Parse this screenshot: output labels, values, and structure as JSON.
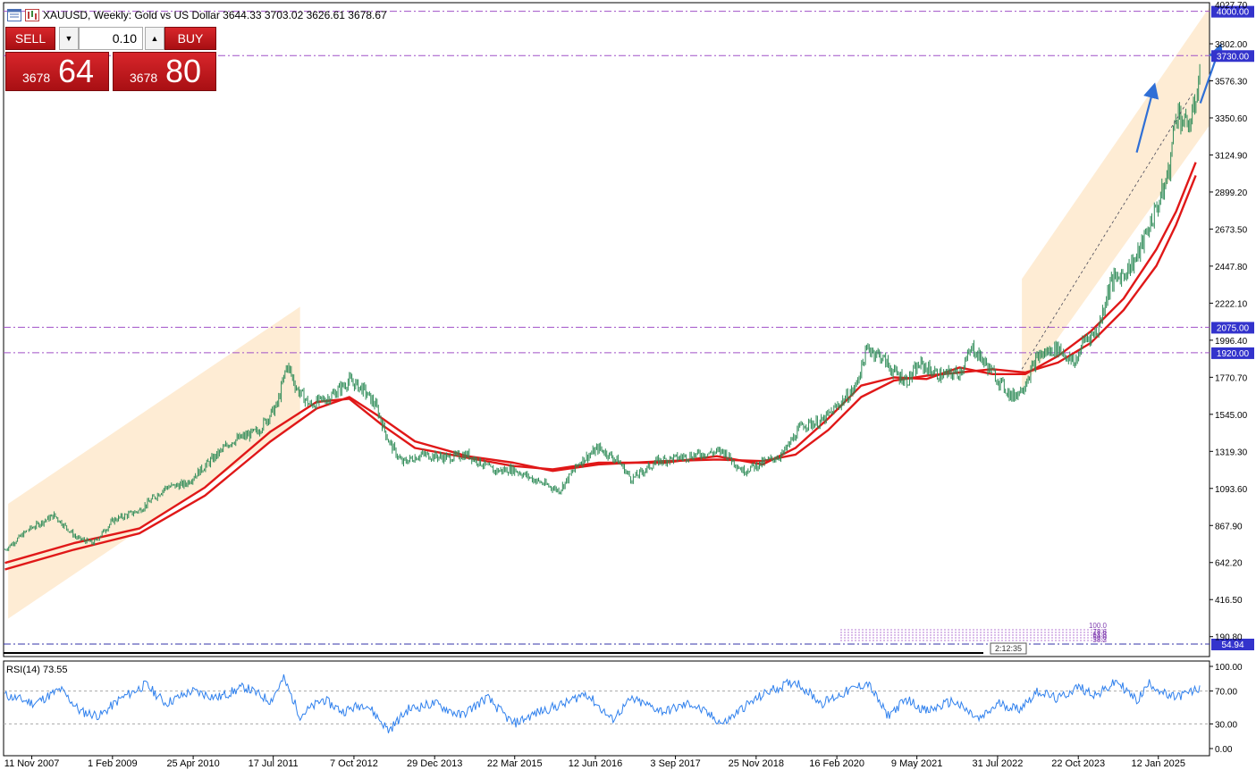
{
  "window": {
    "title": "XAUUSD, Weekly:  Gold vs US Dollar  3644.33 3703.02 3626.61 3678.67"
  },
  "trade_panel": {
    "sell_label": "SELL",
    "buy_label": "BUY",
    "volume": "0.10",
    "sell_price_small": "3678",
    "sell_price_big": "64",
    "buy_price_small": "3678",
    "buy_price_big": "80"
  },
  "colors": {
    "candle": "#2e8b57",
    "ma": "#e01818",
    "level_line": "#a050c8",
    "channel": "#fde5c6",
    "rsi": "#2f80ed",
    "label_bg": "#3333cc",
    "arrow": "#2f6fd6"
  },
  "icons": [
    "chart-window-icon",
    "symbol-icon",
    "volume-down-icon",
    "volume-up-icon"
  ],
  "chart_data": [
    {
      "type": "candlestick",
      "symbol": "XAUUSD",
      "timeframe": "Weekly",
      "log_scale": false,
      "ylim": [
        69.5,
        4052.4
      ],
      "y_ticks": [
        190.8,
        416.5,
        642.2,
        867.9,
        1093.6,
        1319.3,
        1545.0,
        1770.7,
        1996.4,
        2222.1,
        2447.8,
        2673.5,
        2899.2,
        3124.9,
        3350.6,
        3576.3,
        3802.0
      ],
      "x_ticks": [
        "11 Nov 2007",
        "1 Feb 2009",
        "25 Apr 2010",
        "17 Jul 2011",
        "7 Oct 2012",
        "29 Dec 2013",
        "22 Mar 2015",
        "12 Jun 2016",
        "3 Sep 2017",
        "25 Nov 2018",
        "16 Feb 2020",
        "9 May 2021",
        "31 Jul 2022",
        "22 Oct 2023",
        "12 Jan 2025"
      ],
      "x_years": [
        2007.86,
        2009.09,
        2010.32,
        2011.54,
        2012.77,
        2014.0,
        2015.22,
        2016.45,
        2017.67,
        2018.9,
        2020.13,
        2021.35,
        2022.58,
        2023.81,
        2025.03
      ],
      "x_range": [
        2007.43,
        2025.81
      ],
      "price_path": {
        "x": [
          2007.45,
          2007.8,
          2008.2,
          2008.55,
          2008.8,
          2009.1,
          2009.5,
          2009.9,
          2010.2,
          2010.5,
          2010.9,
          2011.3,
          2011.6,
          2011.75,
          2011.9,
          2012.1,
          2012.4,
          2012.7,
          2012.9,
          2013.1,
          2013.3,
          2013.5,
          2013.8,
          2014.2,
          2014.5,
          2014.9,
          2015.2,
          2015.5,
          2015.9,
          2016.2,
          2016.5,
          2016.8,
          2017.0,
          2017.4,
          2017.7,
          2018.0,
          2018.4,
          2018.7,
          2019.0,
          2019.3,
          2019.6,
          2019.9,
          2020.1,
          2020.4,
          2020.6,
          2020.8,
          2021.0,
          2021.2,
          2021.4,
          2021.7,
          2022.0,
          2022.2,
          2022.5,
          2022.8,
          2022.95,
          2023.2,
          2023.5,
          2023.75,
          2023.9,
          2024.1,
          2024.3,
          2024.5,
          2024.7,
          2024.9,
          2025.1,
          2025.2,
          2025.3,
          2025.45,
          2025.55,
          2025.68
        ],
        "y": [
          720,
          840,
          930,
          790,
          760,
          900,
          960,
          1100,
          1120,
          1230,
          1380,
          1440,
          1600,
          1850,
          1700,
          1600,
          1650,
          1750,
          1700,
          1600,
          1380,
          1250,
          1300,
          1280,
          1300,
          1200,
          1210,
          1150,
          1080,
          1250,
          1340,
          1260,
          1150,
          1260,
          1280,
          1300,
          1320,
          1200,
          1250,
          1300,
          1480,
          1500,
          1580,
          1700,
          1950,
          1900,
          1800,
          1750,
          1850,
          1780,
          1800,
          1950,
          1800,
          1650,
          1700,
          1900,
          1950,
          1850,
          2000,
          2050,
          2350,
          2400,
          2500,
          2700,
          2900,
          3050,
          3400,
          3300,
          3350,
          3680
        ]
      },
      "moving_averages": [
        {
          "x": [
            2007.45,
            2008.5,
            2009.5,
            2010.5,
            2011.5,
            2012.2,
            2012.7,
            2013.2,
            2013.7,
            2014.5,
            2015.2,
            2015.8,
            2016.5,
            2017.5,
            2018.3,
            2019.0,
            2019.5,
            2020.0,
            2020.5,
            2021.0,
            2021.5,
            2022.0,
            2022.5,
            2023.0,
            2023.5,
            2024.0,
            2024.5,
            2025.0,
            2025.3,
            2025.6
          ],
          "y": [
            600,
            720,
            820,
            1050,
            1380,
            1580,
            1650,
            1520,
            1380,
            1290,
            1250,
            1200,
            1240,
            1260,
            1270,
            1260,
            1300,
            1450,
            1650,
            1750,
            1780,
            1800,
            1820,
            1800,
            1860,
            1980,
            2180,
            2450,
            2700,
            3000
          ]
        },
        {
          "x": [
            2007.45,
            2008.5,
            2009.5,
            2010.5,
            2011.5,
            2012.2,
            2012.7,
            2013.2,
            2013.7,
            2014.5,
            2015.2,
            2015.8,
            2016.5,
            2017.5,
            2018.3,
            2019.0,
            2019.5,
            2020.0,
            2020.5,
            2021.0,
            2021.5,
            2022.0,
            2022.5,
            2023.0,
            2023.5,
            2024.0,
            2024.5,
            2025.0,
            2025.3,
            2025.6
          ],
          "y": [
            640,
            760,
            850,
            1100,
            1440,
            1620,
            1640,
            1480,
            1340,
            1280,
            1230,
            1210,
            1250,
            1250,
            1290,
            1240,
            1340,
            1520,
            1720,
            1770,
            1760,
            1830,
            1790,
            1790,
            1900,
            2050,
            2250,
            2550,
            2780,
            3080
          ]
        }
      ],
      "channels": [
        {
          "x": [
            2007.5,
            2011.95,
            2011.95,
            2007.5
          ],
          "y": [
            1000,
            2200,
            1500,
            300
          ]
        },
        {
          "x": [
            2022.95,
            2025.8,
            2025.8,
            2022.95
          ],
          "y": [
            2370,
            4020,
            3300,
            1700
          ]
        }
      ],
      "horizontal_levels": [
        {
          "value": 4000.0,
          "label": "4000.00"
        },
        {
          "value": 3730.0,
          "label": "3730.00"
        },
        {
          "value": 2075.0,
          "label": "2075.00"
        },
        {
          "value": 1920.0,
          "label": "1920.00"
        }
      ],
      "extra_price_labels": [
        "54.94"
      ],
      "top_clipped_tick": "4027.70",
      "fib_labels": [
        "100.0",
        "78.6",
        "61.8",
        "50.0",
        "38.2"
      ],
      "countdown_label": "2:12:35"
    },
    {
      "type": "line",
      "title": "RSI(14) 73.55",
      "ylim": [
        0,
        100
      ],
      "y_ticks": [
        0.0,
        30.0,
        70.0,
        100.0
      ],
      "y_tick_labels": [
        "0.00",
        "30.00",
        "70.00",
        "100.00"
      ],
      "levels": [
        30,
        70
      ],
      "series": [
        {
          "x": [
            2007.45,
            2007.9,
            2008.3,
            2008.6,
            2008.9,
            2009.2,
            2009.6,
            2009.9,
            2010.3,
            2010.7,
            2011.1,
            2011.5,
            2011.7,
            2011.95,
            2012.3,
            2012.6,
            2012.95,
            2013.3,
            2013.6,
            2014.0,
            2014.4,
            2014.8,
            2015.2,
            2015.6,
            2016.0,
            2016.3,
            2016.7,
            2017.0,
            2017.5,
            2017.9,
            2018.4,
            2018.7,
            2019.1,
            2019.5,
            2019.9,
            2020.3,
            2020.6,
            2020.9,
            2021.2,
            2021.5,
            2021.9,
            2022.3,
            2022.6,
            2022.9,
            2023.2,
            2023.5,
            2023.8,
            2024.1,
            2024.4,
            2024.7,
            2024.9,
            2025.2,
            2025.4,
            2025.68
          ],
          "y": [
            65,
            55,
            72,
            45,
            40,
            60,
            78,
            55,
            70,
            62,
            75,
            58,
            85,
            40,
            60,
            45,
            55,
            22,
            48,
            55,
            40,
            62,
            30,
            45,
            55,
            68,
            35,
            60,
            45,
            55,
            30,
            50,
            70,
            82,
            55,
            70,
            80,
            40,
            60,
            45,
            58,
            35,
            55,
            48,
            70,
            60,
            75,
            65,
            82,
            58,
            80,
            62,
            65,
            73.55
          ]
        }
      ]
    }
  ]
}
